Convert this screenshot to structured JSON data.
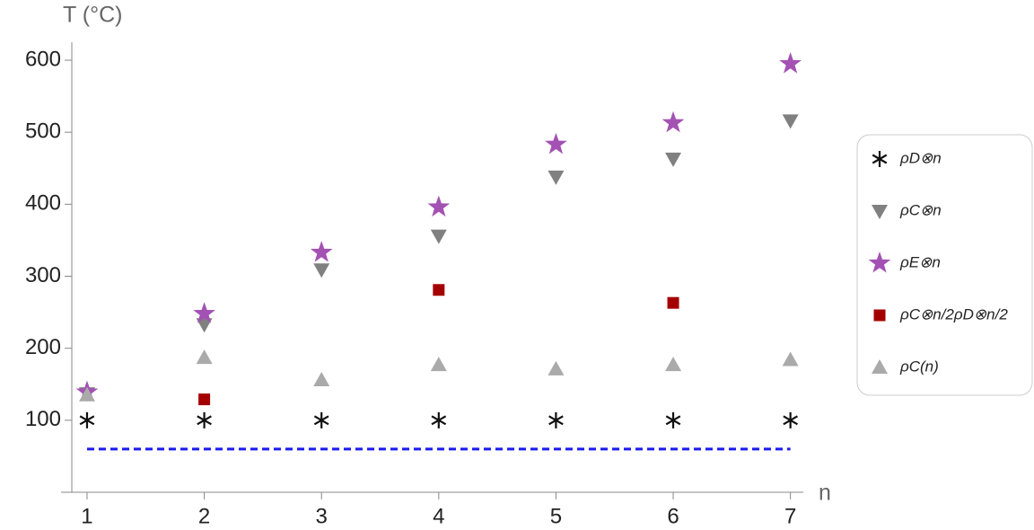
{
  "chart_data": {
    "type": "scatter",
    "x_label": "n",
    "y_label": "T (°C)",
    "x": [
      1,
      2,
      3,
      4,
      5,
      6,
      7
    ],
    "xlim": [
      0.87,
      7.11
    ],
    "xticks": [
      1,
      2,
      3,
      4,
      5,
      6,
      7
    ],
    "ylim": [
      0,
      625
    ],
    "yticks": [
      100,
      200,
      300,
      400,
      500,
      600
    ],
    "reference_line": {
      "value": 60,
      "color": "#1a1aee",
      "style": "dashed"
    },
    "legend": "right",
    "series": [
      {
        "name": "ρD⊗n",
        "marker": "asterisk",
        "color": "#111111",
        "values": [
          100,
          100,
          100,
          100,
          100,
          100,
          100
        ]
      },
      {
        "name": "ρC⊗n",
        "marker": "triangle-down",
        "color": "#808080",
        "values": [
          137,
          233,
          309,
          356,
          438,
          463,
          516
        ]
      },
      {
        "name": "ρE⊗n",
        "marker": "star",
        "color": "#a352b3",
        "values": [
          139,
          248,
          333,
          396,
          483,
          513,
          595
        ]
      },
      {
        "name": "ρC⊗n/2ρD⊗n/2",
        "marker": "square",
        "color": "#a50000",
        "values": [
          null,
          129,
          null,
          281,
          null,
          263,
          null
        ]
      },
      {
        "name": "ρC(n)",
        "marker": "triangle-up",
        "color": "#aaaaaa",
        "values": [
          135,
          187,
          156,
          177,
          171,
          177,
          184
        ]
      }
    ]
  }
}
